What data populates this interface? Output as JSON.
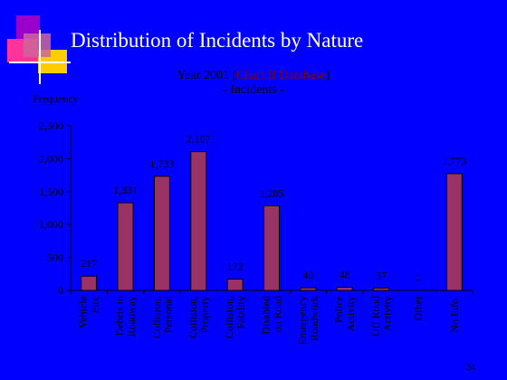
{
  "slide": {
    "title": "Distribution of Incidents by Nature",
    "subtitle_year": "Year 2001 (",
    "subtitle_source": "Chart II Database",
    "subtitle_close": ")",
    "subtitle_line2": "- Incidents -",
    "page_number": "24"
  },
  "colors": {
    "background": "#0000ff",
    "bar": "#993366",
    "logo": [
      "#9900cc",
      "#ff3399",
      "#ffcc00"
    ]
  },
  "chart_data": {
    "type": "bar",
    "ylabel": "Frequency",
    "ylim": [
      0,
      2500
    ],
    "yticks": [
      0,
      500,
      1000,
      1500,
      2000,
      2500
    ],
    "ytick_labels": [
      "0",
      "500",
      "1,000",
      "1,500",
      "2,000",
      "2,500"
    ],
    "categories": [
      [
        "Vehicle",
        "Fire"
      ],
      [
        "Debris in",
        "Roadway"
      ],
      [
        "Collision,",
        "Personal"
      ],
      [
        "Collision,",
        "Property"
      ],
      [
        "Collision,",
        "Fatality"
      ],
      [
        "Disabled",
        "on Road"
      ],
      [
        "Emergency",
        "Roadwork"
      ],
      [
        "Police",
        "Activity"
      ],
      [
        "Off Road",
        "Activity"
      ],
      [
        "Other"
      ],
      [
        "No Info."
      ]
    ],
    "values": [
      217,
      1331,
      1733,
      2107,
      172,
      1285,
      40,
      48,
      37,
      0,
      1773
    ],
    "data_labels": [
      "217",
      "1,331",
      "1,733",
      "2,107",
      "172",
      "1,285",
      "40",
      "48",
      "37",
      "0",
      "1,773"
    ],
    "grid": false,
    "legend": "none"
  }
}
